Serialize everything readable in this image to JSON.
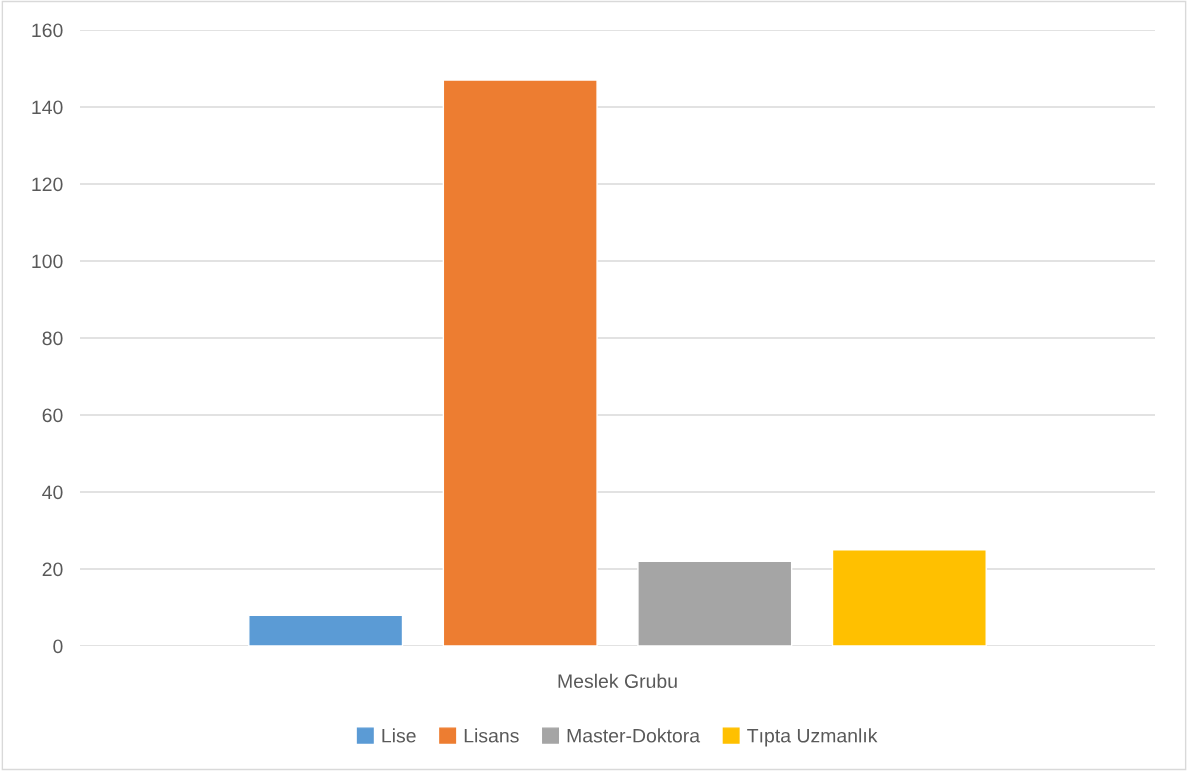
{
  "chart_data": {
    "type": "bar",
    "categories": [
      "Meslek Grubu"
    ],
    "series": [
      {
        "name": "Lise",
        "color": "#5b9bd5",
        "values": [
          8
        ]
      },
      {
        "name": "Lisans",
        "color": "#ed7d31",
        "values": [
          147
        ]
      },
      {
        "name": "Master-Doktora",
        "color": "#a5a5a5",
        "values": [
          22
        ]
      },
      {
        "name": "Tıpta Uzmanlık",
        "color": "#ffc000",
        "values": [
          25
        ]
      }
    ],
    "ylim": [
      0,
      160
    ],
    "yticks": [
      0,
      20,
      40,
      60,
      80,
      100,
      120,
      140,
      160
    ],
    "grid": "y",
    "legend": "bottom"
  }
}
